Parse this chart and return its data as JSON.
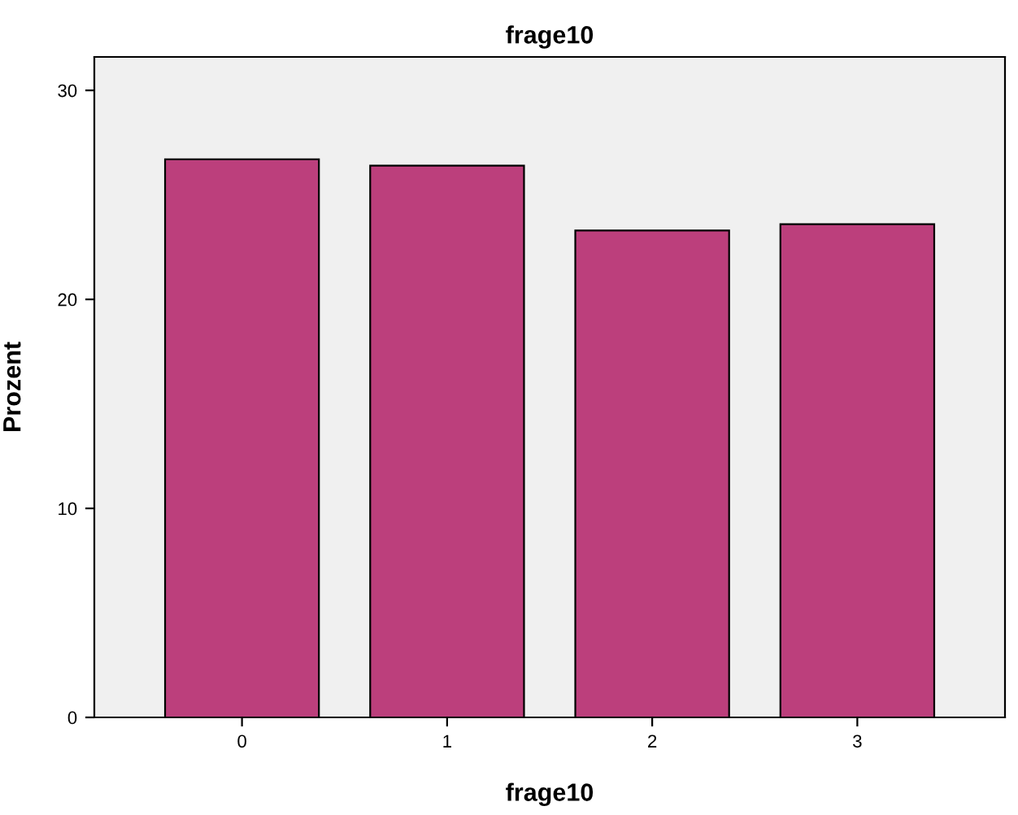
{
  "chart_data": {
    "type": "bar",
    "title": "frage10",
    "xlabel": "frage10",
    "ylabel": "Prozent",
    "categories": [
      "0",
      "1",
      "2",
      "3"
    ],
    "values": [
      26.7,
      26.4,
      23.3,
      23.6
    ],
    "color": "#bc3f7c",
    "ylim": [
      0,
      31.6
    ],
    "yticks": [
      0,
      10,
      20,
      30
    ],
    "grid": false
  }
}
